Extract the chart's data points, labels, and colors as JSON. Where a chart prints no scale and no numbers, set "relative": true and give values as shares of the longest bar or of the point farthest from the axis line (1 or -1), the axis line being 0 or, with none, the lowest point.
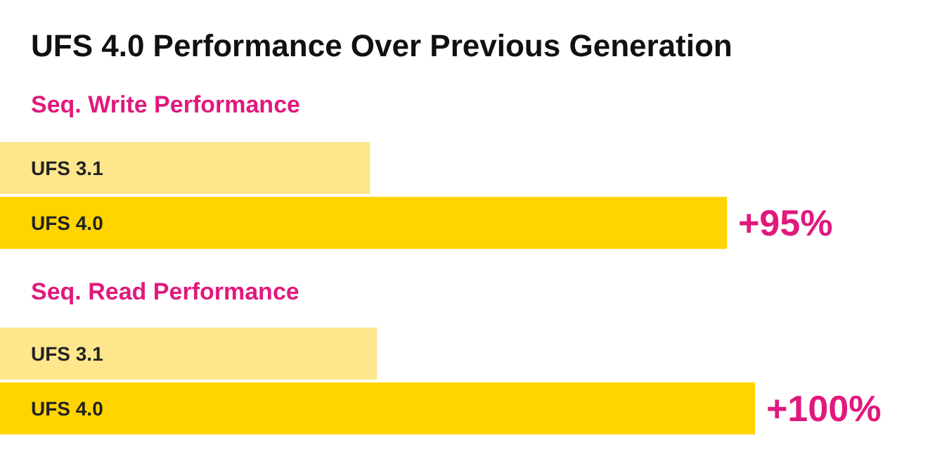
{
  "chart_data": [
    {
      "type": "bar",
      "orientation": "horizontal",
      "relative": true,
      "title": "UFS 4.0 Performance Over Previous Generation",
      "subtitle": "Seq. Write Performance",
      "categories": [
        "UFS 3.1",
        "UFS 4.0"
      ],
      "values": [
        0.509,
        1
      ],
      "colors": [
        "#fde68b",
        "#ffd400"
      ],
      "annotations": [
        {
          "text": "+95%",
          "x": 1,
          "y": "UFS 4.0"
        }
      ],
      "tick_labels": "y"
    },
    {
      "type": "bar",
      "orientation": "horizontal",
      "relative": true,
      "subtitle": "Seq. Read Performance",
      "categories": [
        "UFS 3.1",
        "UFS 4.0"
      ],
      "values": [
        0.499,
        1
      ],
      "colors": [
        "#fde68b",
        "#ffd400"
      ],
      "annotations": [
        {
          "text": "+100%",
          "x": 1,
          "y": "UFS 4.0"
        }
      ],
      "tick_labels": "y"
    }
  ]
}
